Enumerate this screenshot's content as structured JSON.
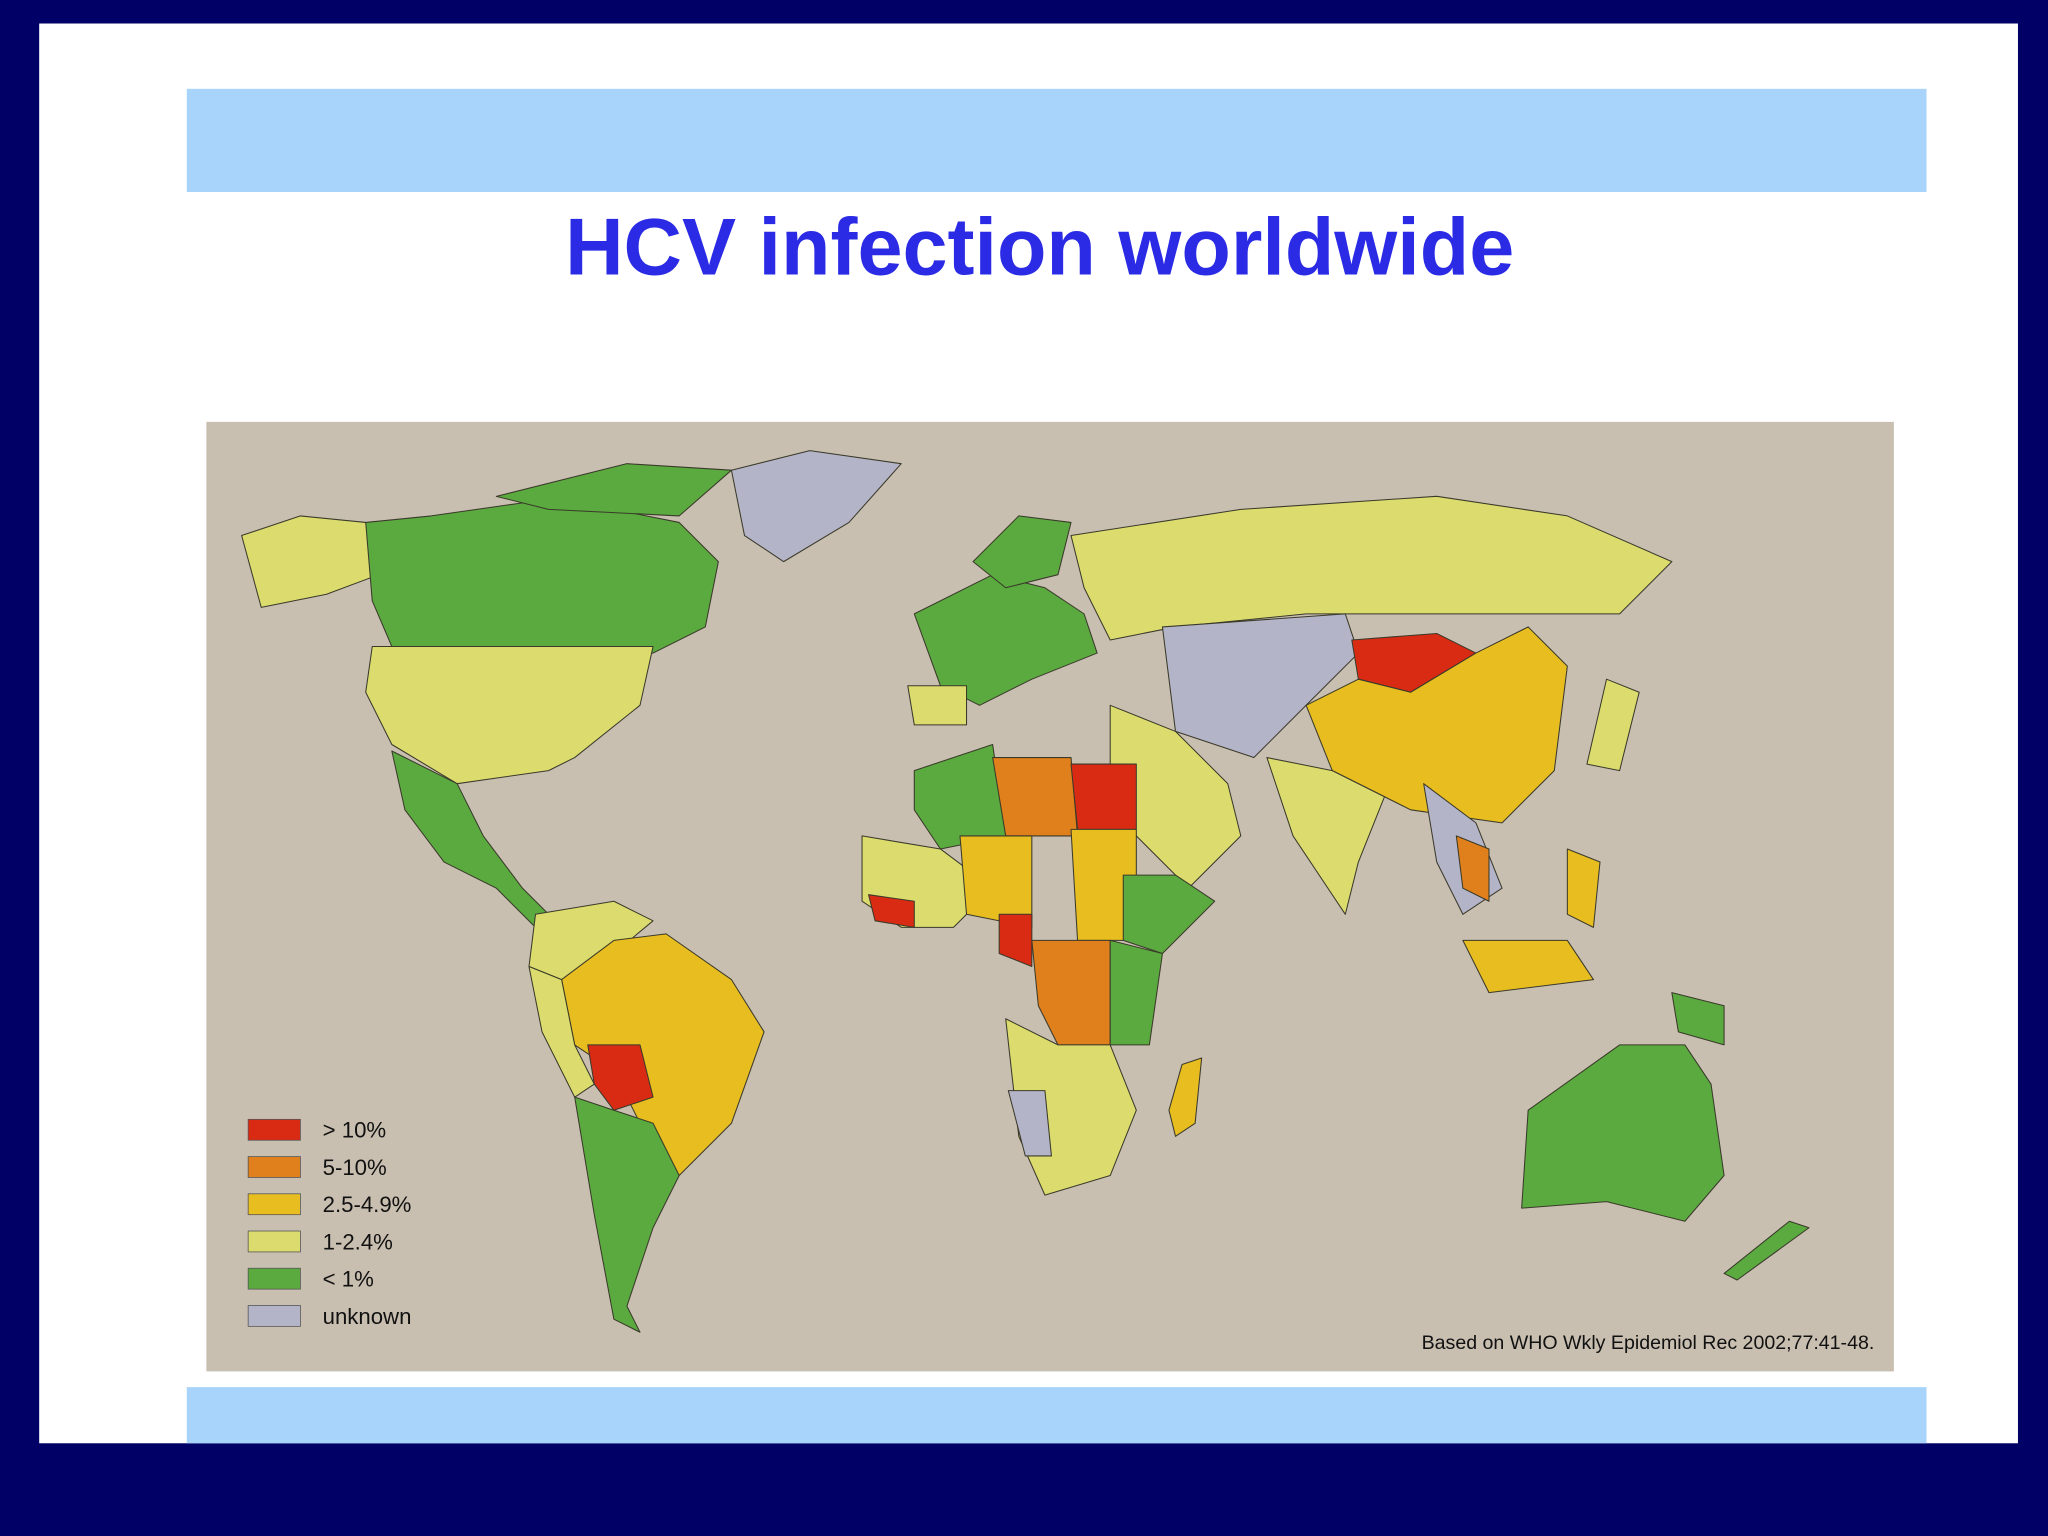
{
  "title": "HCV infection worldwide",
  "legend": [
    {
      "label": "> 10%",
      "color": "#d92b14"
    },
    {
      "label": "5-10%",
      "color": "#e0801c"
    },
    {
      "label": "2.5-4.9%",
      "color": "#e8bd1f"
    },
    {
      "label": "1-2.4%",
      "color": "#dcdc6e"
    },
    {
      "label": "< 1%",
      "color": "#5aaa3f"
    },
    {
      "label": "unknown",
      "color": "#b4b4c8"
    }
  ],
  "source": "Based on WHO Wkly Epidemiol Rec 2002;77:41-48."
}
